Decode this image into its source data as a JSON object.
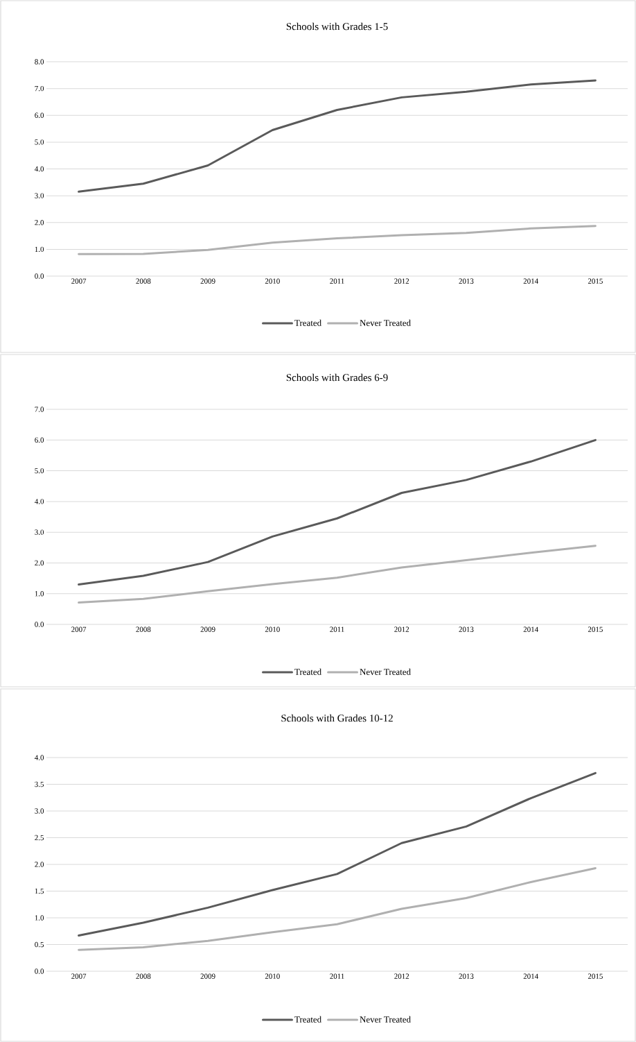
{
  "chart_data": [
    {
      "type": "line",
      "title": "Schools with Grades 1-5",
      "categories": [
        "2007",
        "2008",
        "2009",
        "2010",
        "2011",
        "2012",
        "2013",
        "2014",
        "2015"
      ],
      "series": [
        {
          "name": "Treated",
          "color": "#5a5a5a",
          "values": [
            3.15,
            3.45,
            4.13,
            5.45,
            6.2,
            6.67,
            6.88,
            7.15,
            7.3
          ]
        },
        {
          "name": "Never Treated",
          "color": "#b0b0b0",
          "values": [
            0.82,
            0.83,
            0.98,
            1.25,
            1.41,
            1.53,
            1.61,
            1.78,
            1.87
          ]
        }
      ],
      "ylim": [
        0,
        8
      ],
      "yticks": [
        {
          "value": 0,
          "label": "0.0"
        },
        {
          "value": 1,
          "label": "1.0"
        },
        {
          "value": 2,
          "label": "2.0"
        },
        {
          "value": 3,
          "label": "3.0"
        },
        {
          "value": 4,
          "label": "4.0"
        },
        {
          "value": 5,
          "label": "5.0"
        },
        {
          "value": 6,
          "label": "6.0"
        },
        {
          "value": 7,
          "label": "7.0"
        },
        {
          "value": 8,
          "label": "8.0"
        }
      ],
      "grid": "y",
      "legend": "bottom",
      "line_style": "solid"
    },
    {
      "type": "line",
      "title": "Schools with Grades 6-9",
      "categories": [
        "2007",
        "2008",
        "2009",
        "2010",
        "2011",
        "2012",
        "2013",
        "2014",
        "2015"
      ],
      "series": [
        {
          "name": "Treated",
          "color": "#5a5a5a",
          "values": [
            1.3,
            1.58,
            2.03,
            2.86,
            3.45,
            4.28,
            4.7,
            5.3,
            6.0
          ]
        },
        {
          "name": "Never Treated",
          "color": "#b0b0b0",
          "values": [
            0.71,
            0.83,
            1.08,
            1.31,
            1.52,
            1.85,
            2.09,
            2.33,
            2.56
          ]
        }
      ],
      "ylim": [
        0,
        7
      ],
      "yticks": [
        {
          "value": 0,
          "label": "0.0"
        },
        {
          "value": 1,
          "label": "1.0"
        },
        {
          "value": 2,
          "label": "2.0"
        },
        {
          "value": 3,
          "label": "3.0"
        },
        {
          "value": 4,
          "label": "4.0"
        },
        {
          "value": 5,
          "label": "5.0"
        },
        {
          "value": 6,
          "label": "6.0"
        },
        {
          "value": 7,
          "label": "7.0"
        }
      ],
      "grid": "y",
      "legend": "bottom",
      "line_style": "solid"
    },
    {
      "type": "line",
      "title": "Schools with Grades 10-12",
      "categories": [
        "2007",
        "2008",
        "2009",
        "2010",
        "2011",
        "2012",
        "2013",
        "2014",
        "2015"
      ],
      "series": [
        {
          "name": "Treated",
          "color": "#5a5a5a",
          "values": [
            0.67,
            0.91,
            1.19,
            1.52,
            1.82,
            2.4,
            2.71,
            3.24,
            3.71
          ]
        },
        {
          "name": "Never Treated",
          "color": "#b0b0b0",
          "values": [
            0.4,
            0.45,
            0.57,
            0.73,
            0.88,
            1.17,
            1.37,
            1.67,
            1.93
          ]
        }
      ],
      "ylim": [
        0,
        4
      ],
      "yticks": [
        {
          "value": 0,
          "label": "0.0"
        },
        {
          "value": 0.5,
          "label": "0.5"
        },
        {
          "value": 1,
          "label": "1.0"
        },
        {
          "value": 1.5,
          "label": "1.5"
        },
        {
          "value": 2,
          "label": "2.0"
        },
        {
          "value": 2.5,
          "label": "2.5"
        },
        {
          "value": 3,
          "label": "3.0"
        },
        {
          "value": 3.5,
          "label": "3.5"
        },
        {
          "value": 4,
          "label": "4.0"
        }
      ],
      "grid": "y",
      "legend": "bottom",
      "line_style": "solid"
    }
  ]
}
